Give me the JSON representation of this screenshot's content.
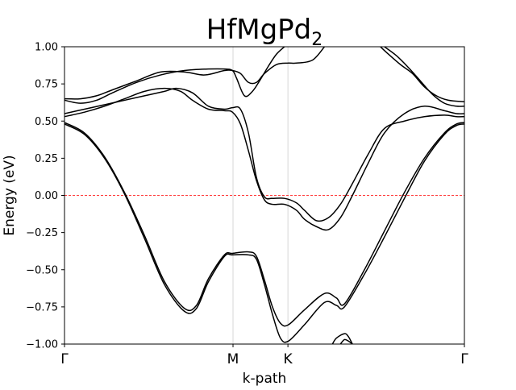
{
  "chart_data": {
    "type": "line",
    "title": "HfMgPd",
    "title_subscript": "2",
    "xlabel": "k-path",
    "ylabel": "Energy (eV)",
    "xlim": [
      0,
      1
    ],
    "ylim": [
      -1.0,
      1.0
    ],
    "x_ticks": [
      {
        "pos": 0.0,
        "label": "Γ"
      },
      {
        "pos": 0.4214,
        "label": "M"
      },
      {
        "pos": 0.5587,
        "label": "K"
      },
      {
        "pos": 1.0,
        "label": "Γ"
      }
    ],
    "y_ticks": [
      -1.0,
      -0.75,
      -0.5,
      -0.25,
      0.0,
      0.25,
      0.5,
      0.75,
      1.0
    ],
    "y_tick_labels": [
      "−1.00",
      "−0.75",
      "−0.50",
      "−0.25",
      "0.00",
      "0.25",
      "0.50",
      "0.75",
      "1.00"
    ],
    "fermi_level": 0.0,
    "fermi_color": "#ff0000",
    "vline_color": "#cccccc",
    "line_color": "#000000",
    "grid": false,
    "legend": "none",
    "series": [
      {
        "x": [
          0.0,
          0.05,
          0.1,
          0.15,
          0.2,
          0.25,
          0.3,
          0.33,
          0.36,
          0.4,
          0.42,
          0.46,
          0.48,
          0.5,
          0.52,
          0.54,
          0.56,
          0.6,
          0.65,
          0.68,
          0.7,
          0.75,
          0.8,
          0.85,
          0.9,
          0.95,
          0.98,
          1.0
        ],
        "y": [
          0.49,
          0.42,
          0.26,
          0.02,
          -0.27,
          -0.58,
          -0.76,
          -0.74,
          -0.56,
          -0.4,
          -0.39,
          -0.38,
          -0.41,
          -0.57,
          -0.75,
          -0.86,
          -0.87,
          -0.77,
          -0.66,
          -0.69,
          -0.73,
          -0.5,
          -0.24,
          0.02,
          0.25,
          0.42,
          0.48,
          0.49
        ]
      },
      {
        "x": [
          0.0,
          0.05,
          0.1,
          0.15,
          0.2,
          0.25,
          0.3,
          0.33,
          0.36,
          0.4,
          0.42,
          0.46,
          0.48,
          0.5,
          0.52,
          0.54,
          0.56,
          0.6,
          0.65,
          0.68,
          0.7,
          0.75,
          0.8,
          0.85,
          0.9,
          0.95,
          0.98,
          1.0
        ],
        "y": [
          0.48,
          0.41,
          0.25,
          0.01,
          -0.29,
          -0.6,
          -0.78,
          -0.76,
          -0.58,
          -0.41,
          -0.4,
          -0.4,
          -0.43,
          -0.6,
          -0.8,
          -0.96,
          -0.98,
          -0.87,
          -0.72,
          -0.74,
          -0.75,
          -0.53,
          -0.28,
          -0.02,
          0.23,
          0.41,
          0.47,
          0.48
        ]
      },
      {
        "x": [
          0.0,
          0.05,
          0.1,
          0.15,
          0.2,
          0.25,
          0.29,
          0.32,
          0.36,
          0.4,
          0.42,
          0.44,
          0.46,
          0.48,
          0.5,
          0.52,
          0.55,
          0.58,
          0.6,
          0.63,
          0.66,
          0.69,
          0.72,
          0.76,
          0.8,
          0.85,
          0.9,
          0.95,
          0.98,
          1.0
        ],
        "y": [
          0.53,
          0.56,
          0.6,
          0.65,
          0.7,
          0.72,
          0.7,
          0.64,
          0.58,
          0.57,
          0.56,
          0.48,
          0.3,
          0.1,
          -0.03,
          -0.06,
          -0.06,
          -0.1,
          -0.16,
          -0.21,
          -0.23,
          -0.15,
          0.0,
          0.22,
          0.42,
          0.55,
          0.6,
          0.57,
          0.55,
          0.55
        ]
      },
      {
        "x": [
          0.0,
          0.05,
          0.1,
          0.15,
          0.2,
          0.25,
          0.28,
          0.32,
          0.36,
          0.4,
          0.42,
          0.44,
          0.46,
          0.48,
          0.5,
          0.52,
          0.55,
          0.58,
          0.6,
          0.63,
          0.66,
          0.69,
          0.72,
          0.76,
          0.8,
          0.85,
          0.9,
          0.95,
          0.98,
          1.0
        ],
        "y": [
          0.55,
          0.58,
          0.61,
          0.64,
          0.67,
          0.7,
          0.72,
          0.69,
          0.6,
          0.58,
          0.59,
          0.58,
          0.42,
          0.12,
          -0.01,
          -0.02,
          -0.02,
          -0.05,
          -0.1,
          -0.17,
          -0.15,
          -0.06,
          0.08,
          0.28,
          0.45,
          0.5,
          0.53,
          0.54,
          0.53,
          0.53
        ]
      },
      {
        "x": [
          0.0,
          0.04,
          0.08,
          0.12,
          0.18,
          0.24,
          0.3,
          0.35,
          0.4,
          0.42,
          0.44,
          0.46,
          0.48,
          0.5,
          0.53,
          0.56,
          0.58,
          0.62,
          0.65
        ],
        "y": [
          0.65,
          0.65,
          0.67,
          0.71,
          0.77,
          0.83,
          0.83,
          0.81,
          0.84,
          0.84,
          0.82,
          0.76,
          0.76,
          0.82,
          0.88,
          0.89,
          0.89,
          0.91,
          1.0
        ]
      },
      {
        "x": [
          0.0,
          0.04,
          0.08,
          0.12,
          0.18,
          0.24,
          0.3,
          0.36,
          0.4,
          0.42,
          0.43,
          0.45,
          0.47,
          0.49,
          0.51,
          0.53,
          0.55
        ],
        "y": [
          0.64,
          0.62,
          0.64,
          0.69,
          0.76,
          0.81,
          0.84,
          0.85,
          0.85,
          0.84,
          0.79,
          0.67,
          0.7,
          0.78,
          0.87,
          0.95,
          1.0
        ]
      },
      {
        "x": [
          0.79,
          0.81,
          0.84,
          0.87,
          0.9,
          0.93,
          0.96,
          1.0
        ],
        "y": [
          1.0,
          0.95,
          0.88,
          0.82,
          0.73,
          0.67,
          0.64,
          0.63
        ]
      },
      {
        "x": [
          0.8,
          0.83,
          0.86,
          0.89,
          0.92,
          0.95,
          0.98,
          1.0
        ],
        "y": [
          1.0,
          0.94,
          0.86,
          0.77,
          0.68,
          0.62,
          0.6,
          0.6
        ]
      },
      {
        "x": [
          0.67,
          0.68,
          0.7,
          0.71,
          0.72
        ],
        "y": [
          -1.0,
          -0.96,
          -0.93,
          -0.95,
          -1.0
        ]
      },
      {
        "x": [
          0.69,
          0.7,
          0.71,
          0.72
        ],
        "y": [
          -1.0,
          -0.97,
          -0.98,
          -1.0
        ]
      }
    ]
  }
}
